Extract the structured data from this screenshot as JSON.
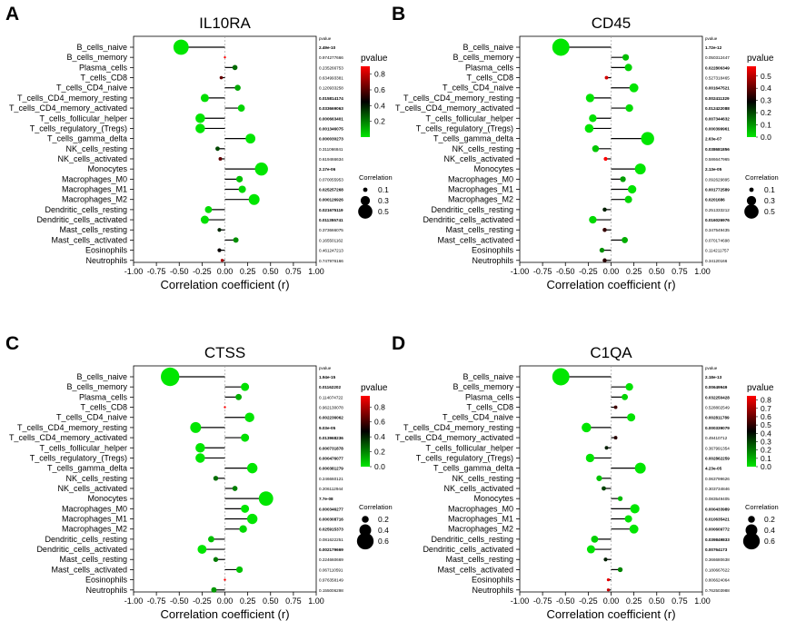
{
  "cell_types": [
    "B_cells_naive",
    "B_cells_memory",
    "Plasma_cells",
    "T_cells_CD8",
    "T_cells_CD4_naive",
    "T_cells_CD4_memory_resting",
    "T_cells_CD4_memory_activated",
    "T_cells_follicular_helper",
    "T_cells_regulatory_(Tregs)",
    "T_cells_gamma_delta",
    "NK_cells_resting",
    "NK_cells_activated",
    "Monocytes",
    "Macrophages_M0",
    "Macrophages_M1",
    "Macrophages_M2",
    "Dendritic_cells_resting",
    "Dendritic_cells_activated",
    "Mast_cells_resting",
    "Mast_cells_activated",
    "Eosinophils",
    "Neutrophils"
  ],
  "x_ticks": [
    "-1.00",
    "-0.75",
    "-0.50",
    "-0.25",
    "0.00",
    "0.25",
    "0.50",
    "0.75",
    "1.00"
  ],
  "x_label": "Correlation coefficient (r)",
  "pvalue_header": "pvalue",
  "color_legend_title": "pvalue",
  "size_legend_title": "Correlation",
  "colors": {
    "low_p": "#00e600",
    "mid_p": "#000000",
    "high_p": "#ff0000",
    "stem": "#000000"
  },
  "chart_data": [
    {
      "panel_label": "A",
      "title": "IL10RA",
      "type": "lollipop",
      "x": [
        -0.48,
        0.0,
        0.11,
        -0.04,
        0.14,
        -0.22,
        0.18,
        -0.27,
        -0.27,
        0.28,
        -0.08,
        -0.05,
        0.4,
        0.16,
        0.19,
        0.32,
        -0.18,
        -0.22,
        -0.06,
        0.12,
        -0.06,
        -0.03
      ],
      "pvalues": [
        "2.49e-10",
        "0.974277666",
        "0.235266753",
        "0.634993381",
        "0.120933258",
        "0.015814174",
        "0.033669063",
        "0.000663401",
        "0.001346075",
        "0.000030273",
        "0.311066841",
        "0.619466634",
        "2.17e-06",
        "0.070055953",
        "0.025257268",
        "0.000126926",
        "0.021675119",
        "0.011355741",
        "0.373666075",
        "0.165501162",
        "0.461247213",
        "0.747976166"
      ],
      "pvalue_bold": [
        true,
        false,
        false,
        false,
        false,
        true,
        true,
        true,
        true,
        true,
        false,
        false,
        true,
        false,
        true,
        true,
        true,
        true,
        false,
        false,
        false,
        false
      ],
      "p_values": [
        0.0,
        0.97,
        0.24,
        0.63,
        0.12,
        0.016,
        0.034,
        0.001,
        0.001,
        0.0,
        0.31,
        0.62,
        0.0,
        0.07,
        0.025,
        0.0,
        0.022,
        0.011,
        0.37,
        0.17,
        0.46,
        0.75
      ],
      "xlim": [
        -1.0,
        1.0
      ],
      "color_ticks": [
        "0.8",
        "0.6",
        "0.4",
        "0.2"
      ],
      "color_range": [
        0,
        0.9
      ],
      "color_tick_values": [
        0.8,
        0.6,
        0.4,
        0.2
      ],
      "size_ticks": [
        "0.1",
        "0.3",
        "0.5"
      ],
      "size_values": [
        0.1,
        0.3,
        0.5
      ]
    },
    {
      "panel_label": "B",
      "title": "CD45",
      "type": "lollipop",
      "x": [
        -0.55,
        0.16,
        0.19,
        -0.05,
        0.25,
        -0.23,
        0.2,
        -0.2,
        -0.24,
        0.4,
        -0.17,
        -0.06,
        0.32,
        0.13,
        0.23,
        0.19,
        -0.07,
        -0.2,
        -0.07,
        0.15,
        -0.1,
        -0.07
      ],
      "pvalues": [
        "1.72e-12",
        "0.050312447",
        "0.022806349",
        "0.527318465",
        "0.001647521",
        "0.002411329",
        "0.012422088",
        "0.007344632",
        "0.000399961",
        "2.63e-07",
        "0.038681856",
        "0.586647965",
        "2.13e-05",
        "0.092629895",
        "0.001772589",
        "0.0201686",
        "0.251333212",
        "0.016026976",
        "0.347549435",
        "0.070174698",
        "0.114211757",
        "0.34120166"
      ],
      "pvalue_bold": [
        true,
        false,
        true,
        false,
        true,
        true,
        true,
        true,
        true,
        true,
        true,
        false,
        true,
        false,
        true,
        true,
        false,
        true,
        false,
        false,
        false,
        false
      ],
      "p_values": [
        0.0,
        0.05,
        0.023,
        0.53,
        0.002,
        0.002,
        0.012,
        0.007,
        0.0,
        0.0,
        0.039,
        0.59,
        0.0,
        0.09,
        0.002,
        0.02,
        0.25,
        0.016,
        0.35,
        0.07,
        0.11,
        0.34
      ],
      "xlim": [
        -1.0,
        1.0
      ],
      "color_ticks": [
        "0.5",
        "0.4",
        "0.3",
        "0.2",
        "0.1",
        "0.0"
      ],
      "color_range": [
        0,
        0.58
      ],
      "color_tick_values": [
        0.5,
        0.4,
        0.3,
        0.2,
        0.1,
        0.0
      ],
      "size_ticks": [
        "0.1",
        "0.3",
        "0.5"
      ],
      "size_values": [
        0.1,
        0.3,
        0.5
      ]
    },
    {
      "panel_label": "C",
      "title": "CTSS",
      "type": "lollipop",
      "x": [
        -0.6,
        0.22,
        0.15,
        0.0,
        0.27,
        -0.32,
        0.22,
        -0.27,
        -0.27,
        0.3,
        -0.1,
        0.11,
        0.45,
        0.22,
        0.3,
        0.2,
        -0.15,
        -0.25,
        -0.1,
        0.16,
        0.0,
        -0.12
      ],
      "pvalues": [
        "1.94e-15",
        "0.01162202",
        "0.114074722",
        "0.962130078",
        "0.002236062",
        "9.03e-05",
        "0.013968236",
        "0.000731878",
        "0.000476077",
        "0.000381279",
        "0.246660121",
        "0.206112944",
        "7.7e-08",
        "0.000346277",
        "0.000308716",
        "0.025915373",
        "0.081622251",
        "0.002179669",
        "0.224660669",
        "0.067110591",
        "0.976358149",
        "0.155006298"
      ],
      "pvalue_bold": [
        true,
        true,
        false,
        false,
        true,
        true,
        true,
        true,
        true,
        true,
        false,
        false,
        true,
        true,
        true,
        true,
        false,
        true,
        false,
        false,
        false,
        false
      ],
      "p_values": [
        0.0,
        0.012,
        0.11,
        0.96,
        0.002,
        0.0,
        0.014,
        0.001,
        0.0,
        0.0,
        0.25,
        0.21,
        0.0,
        0.0,
        0.0,
        0.026,
        0.08,
        0.002,
        0.22,
        0.07,
        0.98,
        0.16
      ],
      "xlim": [
        -1.0,
        1.0
      ],
      "color_ticks": [
        "0.8",
        "0.6",
        "0.4",
        "0.2",
        "0.0"
      ],
      "color_range": [
        0,
        0.95
      ],
      "color_tick_values": [
        0.8,
        0.6,
        0.4,
        0.2,
        0.0
      ],
      "size_ticks": [
        "0.2",
        "0.4",
        "0.6"
      ],
      "size_values": [
        0.2,
        0.4,
        0.6
      ]
    },
    {
      "panel_label": "D",
      "title": "C1QA",
      "type": "lollipop",
      "x": [
        -0.55,
        0.2,
        0.15,
        0.05,
        0.22,
        -0.27,
        0.05,
        -0.05,
        -0.23,
        0.32,
        -0.13,
        -0.08,
        0.1,
        0.26,
        0.19,
        0.25,
        -0.18,
        -0.22,
        -0.06,
        0.1,
        -0.03,
        -0.03
      ],
      "pvalues": [
        "2.18e-13",
        "0.00649949",
        "0.032250428",
        "0.528802549",
        "0.002811789",
        "0.000339079",
        "0.49410712",
        "0.367991354",
        "0.002862259",
        "4.23e-05",
        "0.063799626",
        "0.303734846",
        "0.083549405",
        "0.000433989",
        "0.010635421",
        "0.000609772",
        "0.039849833",
        "0.00764173",
        "0.366680638",
        "0.180667622",
        "0.806624064",
        "0.762503988"
      ],
      "pvalue_bold": [
        true,
        true,
        true,
        false,
        true,
        true,
        false,
        false,
        true,
        true,
        false,
        false,
        false,
        true,
        true,
        true,
        true,
        true,
        false,
        false,
        false,
        false
      ],
      "p_values": [
        0.0,
        0.006,
        0.032,
        0.53,
        0.003,
        0.0,
        0.49,
        0.37,
        0.003,
        0.0,
        0.06,
        0.3,
        0.08,
        0.0,
        0.011,
        0.0,
        0.04,
        0.008,
        0.37,
        0.18,
        0.81,
        0.76
      ],
      "xlim": [
        -1.0,
        1.0
      ],
      "color_ticks": [
        "0.8",
        "0.7",
        "0.6",
        "0.5",
        "0.4",
        "0.3",
        "0.2",
        "0.1",
        "0.0"
      ],
      "color_range": [
        0,
        0.85
      ],
      "color_tick_values": [
        0.8,
        0.7,
        0.6,
        0.5,
        0.4,
        0.3,
        0.2,
        0.1,
        0.0
      ],
      "size_ticks": [
        "0.2",
        "0.4",
        "0.6"
      ],
      "size_values": [
        0.2,
        0.4,
        0.6
      ]
    }
  ]
}
